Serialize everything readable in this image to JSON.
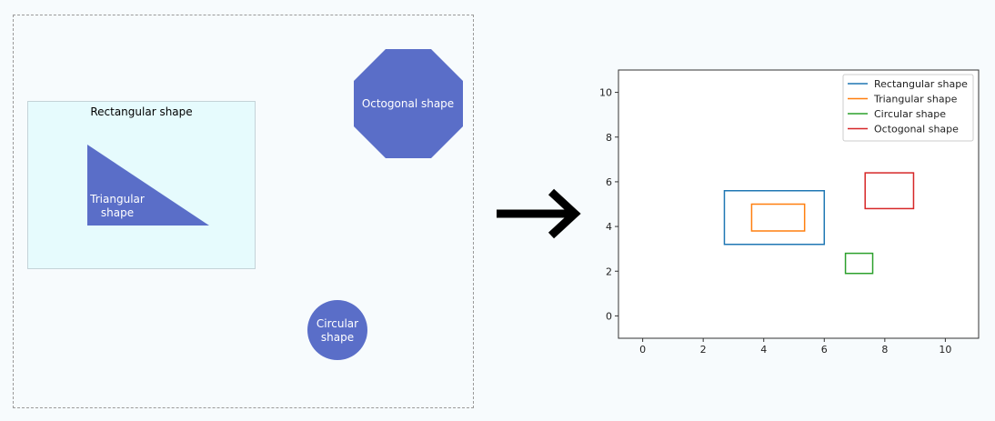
{
  "diagram": {
    "shapes": {
      "rectangular": {
        "label": "Rectangular shape"
      },
      "triangular": {
        "label_line1": "Triangular",
        "label_line2": "shape"
      },
      "octogonal": {
        "label": "Octogonal shape"
      },
      "circular": {
        "label_line1": "Circular",
        "label_line2": "shape"
      }
    },
    "shape_fill": "#5a6ec8",
    "rect_fill": "#e6fbfd"
  },
  "chart_data": {
    "type": "box-outlines",
    "xlim": [
      -0.8,
      11.1
    ],
    "ylim": [
      -1.0,
      11.0
    ],
    "xticks": [
      0,
      2,
      4,
      6,
      8,
      10
    ],
    "yticks": [
      0,
      2,
      4,
      6,
      8,
      10
    ],
    "legend_position": "top-right",
    "series": [
      {
        "name": "Rectangular shape",
        "color": "#1f77b4",
        "x0": 2.7,
        "x1": 6.0,
        "y0": 3.2,
        "y1": 5.6
      },
      {
        "name": "Triangular shape",
        "color": "#ff7f0e",
        "x0": 3.6,
        "x1": 5.35,
        "y0": 3.8,
        "y1": 5.0
      },
      {
        "name": "Circular shape",
        "color": "#2ca02c",
        "x0": 6.7,
        "x1": 7.6,
        "y0": 1.9,
        "y1": 2.8
      },
      {
        "name": "Octogonal shape",
        "color": "#d62728",
        "x0": 7.35,
        "x1": 8.95,
        "y0": 4.8,
        "y1": 6.4
      }
    ]
  }
}
